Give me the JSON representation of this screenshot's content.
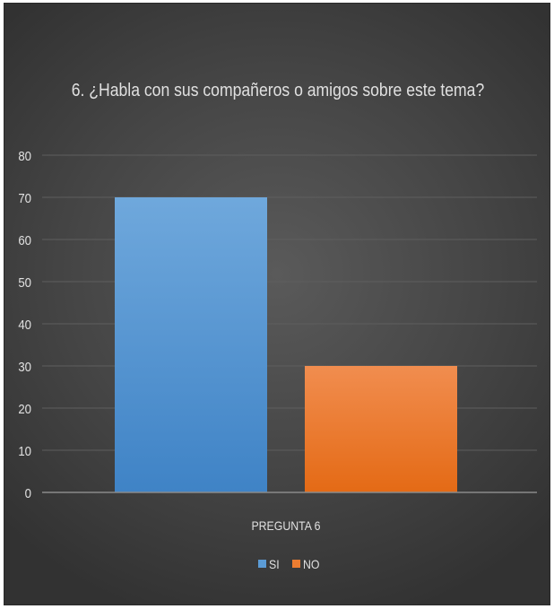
{
  "chart_data": {
    "type": "bar",
    "title": "6. ¿Habla con sus compañeros o amigos sobre este tema?",
    "xlabel": "",
    "ylabel": "",
    "categories": [
      "PREGUNTA 6"
    ],
    "series": [
      {
        "name": "SI",
        "values": [
          70
        ],
        "color": "#5b9bd5"
      },
      {
        "name": "NO",
        "values": [
          30
        ],
        "color": "#ed7d31"
      }
    ],
    "ylim": [
      0,
      80
    ],
    "yticks": [
      "0",
      "10",
      "20",
      "30",
      "40",
      "50",
      "60",
      "70",
      "80"
    ],
    "grid": true,
    "legend": "bottom-center",
    "background": "#454545"
  }
}
